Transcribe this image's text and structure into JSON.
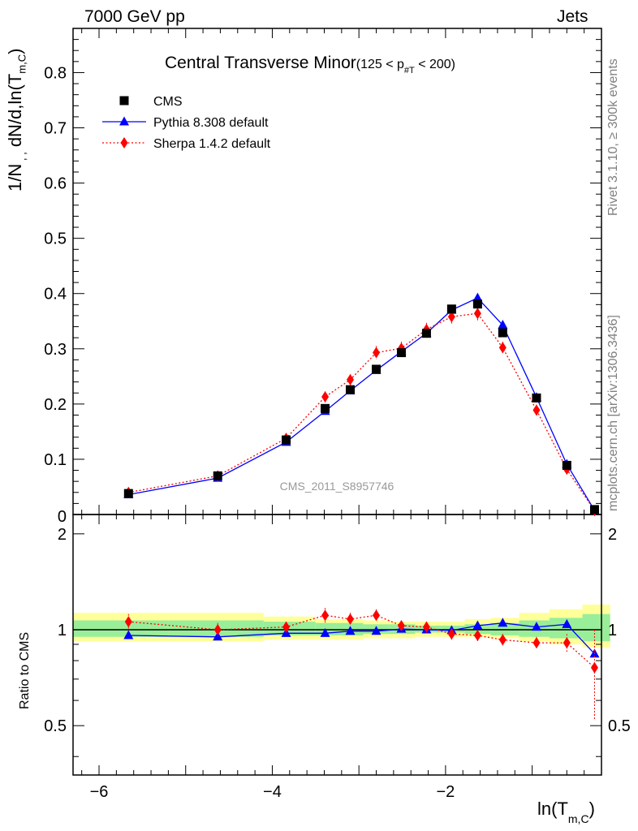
{
  "header": {
    "energy_label": "7000 GeV pp",
    "category_label": "Jets"
  },
  "side_labels": {
    "rivet": "Rivet 3.1.10, ≥ 300k events",
    "source": "mcplots.cern.ch [arXiv:1306.3436]"
  },
  "chart_data": [
    {
      "type": "line",
      "title": "Central Transverse Minor",
      "title_suffix": "(125 < p",
      "title_sub": "#T",
      "title_end": " < 200)",
      "ylabel_main": "1/N",
      "ylabel_sub1": " , ,",
      "ylabel_mid": " dN/d,ln(T",
      "ylabel_sub2": "m,C",
      "ylabel_end": ")",
      "watermark": "CMS_2011_S8957746",
      "xlim": [
        -6.3,
        -0.2
      ],
      "ylim": [
        0,
        0.88
      ],
      "yticks": [
        0.1,
        0.2,
        0.3,
        0.4,
        0.5,
        0.6,
        0.7,
        0.8
      ],
      "ytick_labels": [
        "0.1",
        "0.2",
        "0.3",
        "0.4",
        "0.5",
        "0.6",
        "0.7",
        "0.8"
      ],
      "bottom_tick_label": "0",
      "x": [
        -5.66,
        -4.63,
        -3.84,
        -3.39,
        -3.1,
        -2.8,
        -2.51,
        -2.22,
        -1.93,
        -1.63,
        -1.34,
        -0.95,
        -0.6,
        -0.28
      ],
      "series": [
        {
          "name": "CMS",
          "color": "#000000",
          "marker": "square",
          "values": [
            0.038,
            0.07,
            0.135,
            0.192,
            0.226,
            0.263,
            0.293,
            0.328,
            0.372,
            0.381,
            0.329,
            0.211,
            0.089,
            0.009
          ]
        },
        {
          "name": "Pythia 8.308 default",
          "color": "#0000ff",
          "marker": "triangle",
          "values": [
            0.036,
            0.066,
            0.131,
            0.187,
            0.224,
            0.261,
            0.295,
            0.328,
            0.37,
            0.392,
            0.343,
            0.212,
            0.091,
            0.0075
          ]
        },
        {
          "name": "Sherpa 1.4.2 default",
          "color": "#ff0000",
          "marker": "diamond",
          "dashed": true,
          "values": [
            0.04,
            0.07,
            0.138,
            0.213,
            0.244,
            0.293,
            0.301,
            0.335,
            0.358,
            0.364,
            0.302,
            0.189,
            0.082,
            0.007
          ],
          "errors": [
            0.005,
            0.004,
            0.006,
            0.01,
            0.01,
            0.012,
            0.012,
            0.012,
            0.014,
            0.014,
            0.011,
            0.01,
            0.006,
            0.003
          ]
        }
      ]
    },
    {
      "type": "line",
      "ylabel": "Ratio to CMS",
      "xlabel_main": "ln(T",
      "xlabel_sub": "m,C",
      "xlabel_end": ")",
      "xticks": [
        -6,
        -4,
        -2
      ],
      "xtick_labels": [
        "−6",
        "−4",
        "−2"
      ],
      "ylim": [
        0.35,
        2.3
      ],
      "yticks": [
        0.5,
        1,
        2
      ],
      "ytick_labels": [
        "0.5",
        "1",
        "2"
      ],
      "x": [
        -5.66,
        -4.63,
        -3.84,
        -3.39,
        -3.1,
        -2.8,
        -2.51,
        -2.22,
        -1.93,
        -1.63,
        -1.34,
        -0.95,
        -0.6,
        -0.28
      ],
      "bands": {
        "edges": [
          -6.3,
          -5.2,
          -4.1,
          -3.5,
          -3.25,
          -2.95,
          -2.65,
          -2.35,
          -2.05,
          -1.78,
          -1.48,
          -1.15,
          -0.8,
          -0.42,
          -0.1
        ],
        "yellow_low": [
          0.92,
          0.92,
          0.93,
          0.93,
          0.93,
          0.94,
          0.94,
          0.95,
          0.95,
          0.95,
          0.94,
          0.92,
          0.9,
          0.88
        ],
        "yellow_high": [
          1.13,
          1.13,
          1.1,
          1.08,
          1.08,
          1.07,
          1.06,
          1.06,
          1.06,
          1.08,
          1.09,
          1.13,
          1.16,
          1.2
        ],
        "green_low": [
          0.95,
          0.95,
          0.96,
          0.96,
          0.96,
          0.97,
          0.97,
          0.98,
          0.98,
          0.97,
          0.96,
          0.95,
          0.94,
          0.92
        ],
        "green_high": [
          1.07,
          1.07,
          1.06,
          1.05,
          1.05,
          1.04,
          1.04,
          1.03,
          1.03,
          1.04,
          1.05,
          1.07,
          1.09,
          1.12
        ],
        "yellow_color": "#ffff99",
        "green_color": "#99ee99"
      },
      "series": [
        {
          "name": "Pythia 8.308 default",
          "color": "#0000ff",
          "marker": "triangle",
          "values": [
            0.96,
            0.95,
            0.975,
            0.975,
            0.99,
            0.99,
            1.005,
            1.0,
            0.995,
            1.03,
            1.05,
            1.02,
            1.04,
            0.84
          ]
        },
        {
          "name": "Sherpa 1.4.2 default",
          "color": "#ff0000",
          "marker": "diamond",
          "dashed": true,
          "values": [
            1.06,
            1.0,
            1.02,
            1.11,
            1.08,
            1.11,
            1.03,
            1.02,
            0.97,
            0.96,
            0.93,
            0.91,
            0.91,
            0.76
          ],
          "errors": [
            0.06,
            0.05,
            0.04,
            0.06,
            0.05,
            0.05,
            0.04,
            0.04,
            0.04,
            0.04,
            0.04,
            0.04,
            0.06,
            0.24
          ]
        }
      ]
    }
  ]
}
